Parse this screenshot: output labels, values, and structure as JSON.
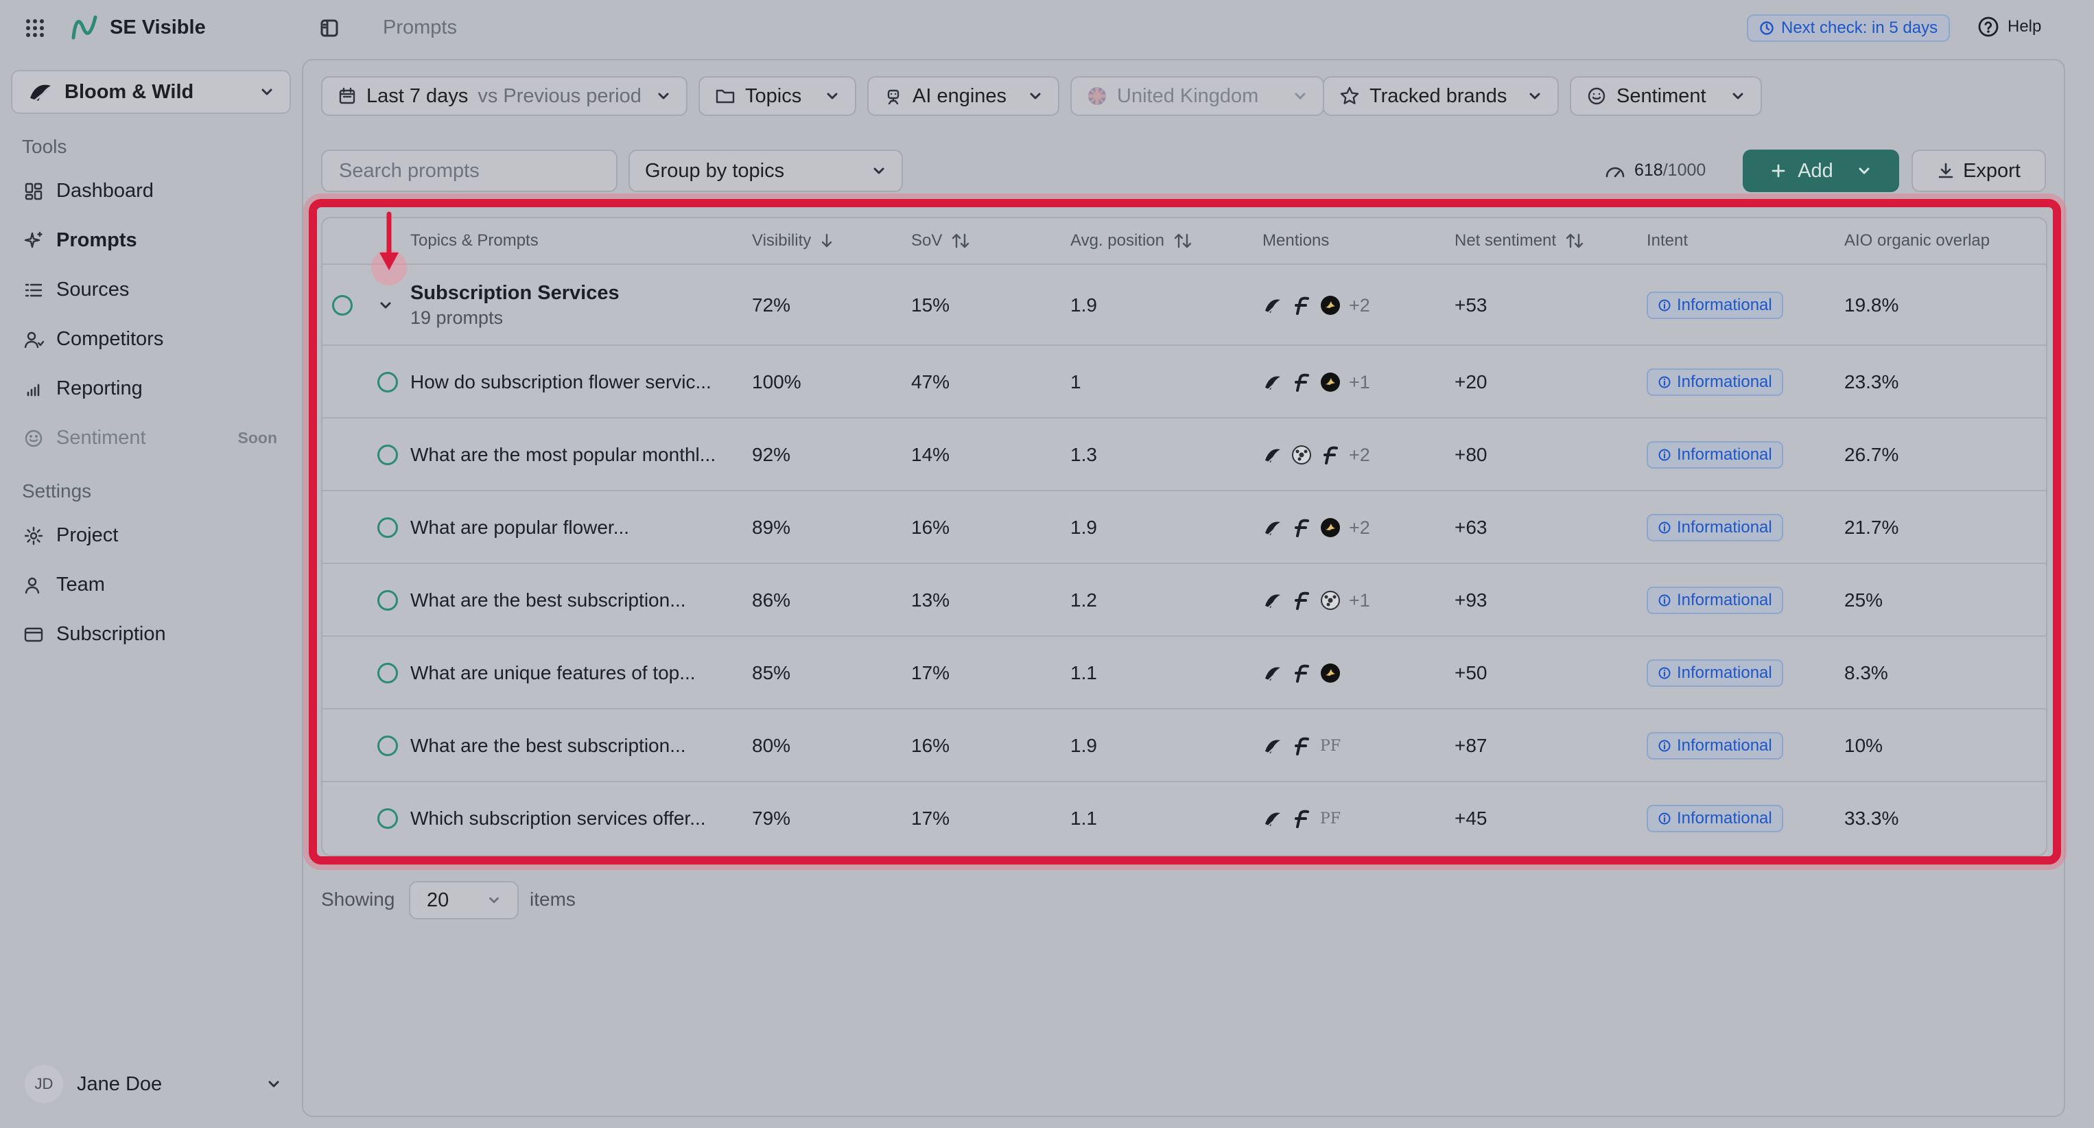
{
  "app": {
    "name": "SE Visible",
    "page_title": "Prompts"
  },
  "header": {
    "next_check": "Next check: in 5 days",
    "help": "Help"
  },
  "sidebar": {
    "project": "Bloom & Wild",
    "tools_title": "Tools",
    "items": [
      {
        "label": "Dashboard"
      },
      {
        "label": "Prompts"
      },
      {
        "label": "Sources"
      },
      {
        "label": "Competitors"
      },
      {
        "label": "Reporting"
      },
      {
        "label": "Sentiment",
        "badge": "Soon"
      }
    ],
    "settings_title": "Settings",
    "settings_items": [
      {
        "label": "Project"
      },
      {
        "label": "Team"
      },
      {
        "label": "Subscription"
      }
    ],
    "user": {
      "initials": "JD",
      "name": "Jane Doe"
    }
  },
  "filters": {
    "date": {
      "range": "Last 7 days",
      "compare": "vs Previous period"
    },
    "topics": "Topics",
    "ai_engines": "AI engines",
    "country": "United Kingdom",
    "tracked_brands": "Tracked brands",
    "sentiment": "Sentiment"
  },
  "toolbar": {
    "search_placeholder": "Search prompts",
    "group_by": "Group by topics",
    "quota_used": "618",
    "quota_total": "/1000",
    "add": "Add",
    "export": "Export"
  },
  "table": {
    "columns": {
      "topic": "Topics & Prompts",
      "visibility": "Visibility",
      "sov": "SoV",
      "avg_position": "Avg. position",
      "mentions": "Mentions",
      "net_sentiment": "Net sentiment",
      "intent": "Intent",
      "aio": "AIO organic overlap"
    },
    "group": {
      "title": "Subscription Services",
      "subtitle": "19 prompts",
      "visibility": "72%",
      "sov": "15%",
      "avg_position": "1.9",
      "mentions_more": "+2",
      "net_sentiment": "+53",
      "intent": "Informational",
      "aio": "19.8%"
    },
    "rows": [
      {
        "prompt": "How do subscription flower servic...",
        "visibility": "100%",
        "sov": "47%",
        "avg_position": "1",
        "mentions_more": "+1",
        "net_sentiment": "+20",
        "intent": "Informational",
        "aio": "23.3%"
      },
      {
        "prompt": "What are the most popular monthl...",
        "visibility": "92%",
        "sov": "14%",
        "avg_position": "1.3",
        "mentions_more": "+2",
        "net_sentiment": "+80",
        "intent": "Informational",
        "aio": "26.7%"
      },
      {
        "prompt": "What are popular flower...",
        "visibility": "89%",
        "sov": "16%",
        "avg_position": "1.9",
        "mentions_more": "+2",
        "net_sentiment": "+63",
        "intent": "Informational",
        "aio": "21.7%"
      },
      {
        "prompt": "What are the best subscription...",
        "visibility": "86%",
        "sov": "13%",
        "avg_position": "1.2",
        "mentions_more": "+1",
        "net_sentiment": "+93",
        "intent": "Informational",
        "aio": "25%"
      },
      {
        "prompt": "What are unique features of top...",
        "visibility": "85%",
        "sov": "17%",
        "avg_position": "1.1",
        "mentions_more": "",
        "net_sentiment": "+50",
        "intent": "Informational",
        "aio": "8.3%"
      },
      {
        "prompt": "What are the best subscription...",
        "visibility": "80%",
        "sov": "16%",
        "avg_position": "1.9",
        "mentions_more": "",
        "mentions_extra_label": "PF",
        "net_sentiment": "+87",
        "intent": "Informational",
        "aio": "10%"
      },
      {
        "prompt": "Which subscription services offer...",
        "visibility": "79%",
        "sov": "17%",
        "avg_position": "1.1",
        "mentions_more": "",
        "mentions_extra_label": "PF",
        "net_sentiment": "+45",
        "intent": "Informational",
        "aio": "33.3%"
      }
    ]
  },
  "pagination": {
    "showing": "Showing",
    "page_size": "20",
    "items": "items"
  },
  "colors": {
    "accent": "#2c6e65",
    "highlight": "#d81b3c",
    "link": "#1e56c7"
  }
}
